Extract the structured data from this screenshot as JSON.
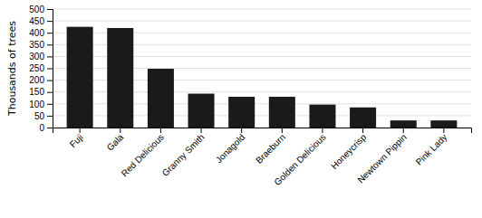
{
  "chart_data": {
    "type": "bar",
    "categories": [
      "Fuji",
      "Gala",
      "Red Delicious",
      "Granny Smith",
      "Jonagold",
      "Braeburn",
      "Golden Delicious",
      "Honeycrisp",
      "Newtown Pippin",
      "Pink Lady"
    ],
    "values": [
      425,
      420,
      248,
      143,
      130,
      130,
      97,
      85,
      30,
      30
    ],
    "color": "#1a1a1a",
    "ylabel": "Thousands of trees",
    "ylim": [
      0,
      500
    ],
    "yticks": [
      0,
      50,
      100,
      150,
      200,
      250,
      300,
      350,
      400,
      450,
      500
    ],
    "grid": true
  }
}
